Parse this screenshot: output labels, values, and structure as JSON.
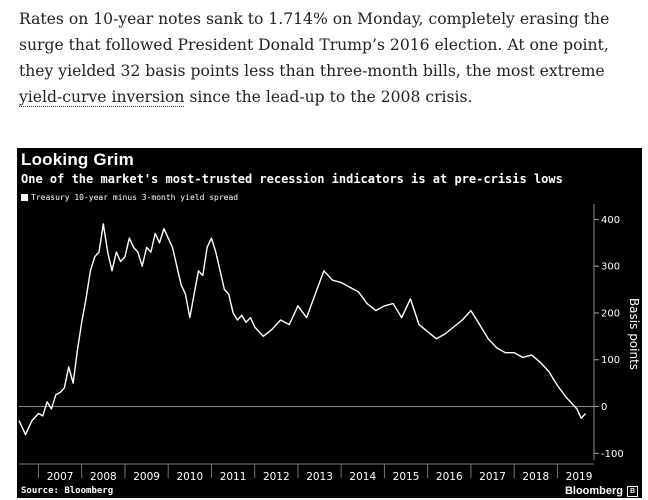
{
  "article": {
    "text_before": "Rates on 10-year notes sank to 1.714% on Monday, completely erasing the surge that followed President Donald Trump’s 2016 election. At one point, they yielded 32 basis points less than three-month bills, the most extreme ",
    "link_text": "yield-curve inversion",
    "text_after": " since the lead-up to the 2008 crisis."
  },
  "chart": {
    "title": "Looking Grim",
    "subtitle": "One of the market's most-trusted recession indicators is at pre-crisis lows",
    "legend": "Treasury 10-year minus 3-month yield spread",
    "source": "Source: Bloomberg",
    "brand": "Bloomberg",
    "brand_icon": "bloomberg-logo-icon"
  },
  "chart_data": {
    "type": "line",
    "title": "Looking Grim",
    "subtitle": "One of the market's most-trusted recession indicators is at pre-crisis lows",
    "ylabel": "Basis points",
    "ylim": [
      -110,
      420
    ],
    "xlim": [
      2006.55,
      2019.8
    ],
    "yticks": [
      -100,
      0,
      100,
      200,
      300,
      400
    ],
    "xticks": [
      "2007",
      "2008",
      "2009",
      "2010",
      "2011",
      "2012",
      "2013",
      "2014",
      "2015",
      "2016",
      "2017",
      "2018",
      "2019"
    ],
    "reference_line": 0,
    "grid": false,
    "legend_position": "top-left",
    "series": [
      {
        "name": "Treasury 10-year minus 3-month yield spread",
        "color": "#ffffff",
        "x": [
          2006.55,
          2006.7,
          2006.85,
          2007.0,
          2007.1,
          2007.2,
          2007.3,
          2007.4,
          2007.5,
          2007.6,
          2007.7,
          2007.8,
          2007.9,
          2008.0,
          2008.1,
          2008.2,
          2008.3,
          2008.4,
          2008.5,
          2008.6,
          2008.7,
          2008.8,
          2008.9,
          2009.0,
          2009.1,
          2009.2,
          2009.3,
          2009.4,
          2009.5,
          2009.6,
          2009.7,
          2009.8,
          2009.9,
          2010.0,
          2010.1,
          2010.2,
          2010.3,
          2010.4,
          2010.5,
          2010.6,
          2010.7,
          2010.8,
          2010.9,
          2011.0,
          2011.1,
          2011.2,
          2011.3,
          2011.4,
          2011.5,
          2011.6,
          2011.7,
          2011.8,
          2011.9,
          2012.0,
          2012.2,
          2012.4,
          2012.6,
          2012.8,
          2013.0,
          2013.2,
          2013.4,
          2013.6,
          2013.8,
          2014.0,
          2014.2,
          2014.4,
          2014.6,
          2014.8,
          2015.0,
          2015.2,
          2015.4,
          2015.6,
          2015.8,
          2016.0,
          2016.2,
          2016.4,
          2016.6,
          2016.8,
          2017.0,
          2017.2,
          2017.4,
          2017.6,
          2017.8,
          2018.0,
          2018.2,
          2018.4,
          2018.6,
          2018.8,
          2019.0,
          2019.2,
          2019.35,
          2019.45,
          2019.55,
          2019.65
        ],
        "values": [
          -30,
          -60,
          -30,
          -15,
          -20,
          10,
          -5,
          25,
          30,
          40,
          85,
          50,
          120,
          180,
          230,
          290,
          320,
          330,
          390,
          330,
          290,
          330,
          310,
          320,
          360,
          340,
          330,
          300,
          340,
          330,
          370,
          350,
          380,
          360,
          340,
          300,
          260,
          240,
          190,
          240,
          290,
          280,
          340,
          360,
          330,
          290,
          250,
          240,
          200,
          185,
          195,
          180,
          190,
          170,
          150,
          165,
          185,
          175,
          215,
          190,
          240,
          290,
          270,
          265,
          255,
          245,
          220,
          205,
          215,
          220,
          190,
          230,
          175,
          160,
          145,
          155,
          170,
          185,
          205,
          175,
          145,
          125,
          115,
          115,
          105,
          110,
          95,
          75,
          45,
          20,
          5,
          -5,
          -25,
          -15
        ]
      }
    ]
  }
}
